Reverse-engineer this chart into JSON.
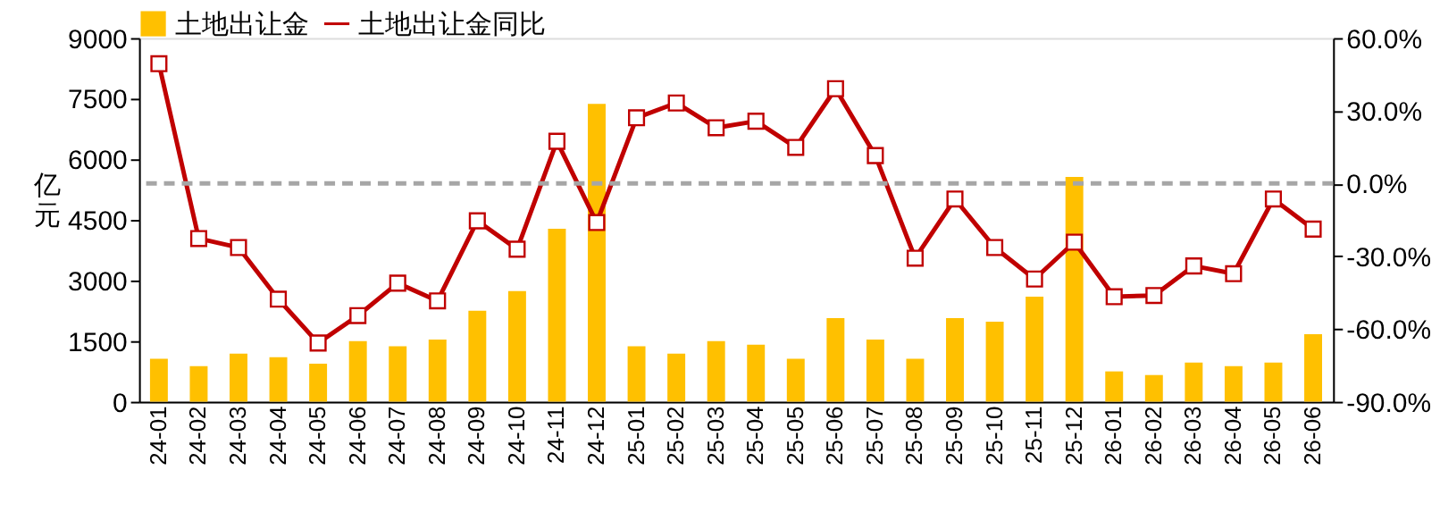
{
  "chart_data": {
    "type": "bar",
    "categories": [
      "24-01",
      "24-02",
      "24-03",
      "24-04",
      "24-05",
      "24-06",
      "24-07",
      "24-08",
      "24-09",
      "24-10",
      "24-11",
      "24-12",
      "25-01",
      "25-02",
      "25-03",
      "25-04",
      "25-05",
      "25-06",
      "25-07",
      "25-08",
      "25-09",
      "25-10",
      "25-11",
      "25-12",
      "26-01",
      "26-02",
      "26-03",
      "26-04",
      "26-05",
      "26-06"
    ],
    "ylabel": "亿元",
    "series": [
      {
        "name": "土地出让金",
        "color": "#ffc000",
        "values": [
          1060,
          880,
          1190,
          1100,
          940,
          1500,
          1370,
          1540,
          2250,
          2740,
          4280,
          7370,
          1370,
          1190,
          1500,
          1410,
          1060,
          2070,
          1540,
          1060,
          2070,
          1980,
          2600,
          5560,
          750,
          660,
          970,
          880,
          970,
          1670
        ]
      },
      {
        "name": "土地出让金同比",
        "type": "line",
        "axis": "y2",
        "color": "#c00000",
        "marker": "square",
        "values": [
          49.4,
          -22.7,
          -26.4,
          -47.7,
          -65.8,
          -54.5,
          -41.1,
          -48.4,
          -15.4,
          -27.1,
          17.4,
          -16.1,
          27.1,
          33.2,
          23.0,
          25.7,
          14.9,
          39.1,
          11.5,
          -30.8,
          -6.4,
          -26.4,
          -39.4,
          -24.2,
          -46.7,
          -46.2,
          -34.0,
          -37.2,
          -6.4,
          -18.8
        ]
      }
    ],
    "ylim": [
      0,
      9000
    ],
    "yticks": [
      0,
      1500,
      3000,
      4500,
      6000,
      7500,
      9000
    ],
    "y2lim": [
      -90,
      60
    ],
    "y2ticks": [
      {
        "value": -90,
        "label": "-90.0%"
      },
      {
        "value": -60,
        "label": "-60.0%"
      },
      {
        "value": -30,
        "label": "-30.0%"
      },
      {
        "value": 0,
        "label": "0.0%"
      },
      {
        "value": 30,
        "label": "30.0%"
      },
      {
        "value": 60,
        "label": "60.0%"
      }
    ],
    "ref_lines": [
      {
        "axis": "y2",
        "value": 0,
        "color": "#a6a6a6",
        "line_style": "dashed"
      }
    ],
    "grid": false,
    "legend": "top"
  }
}
